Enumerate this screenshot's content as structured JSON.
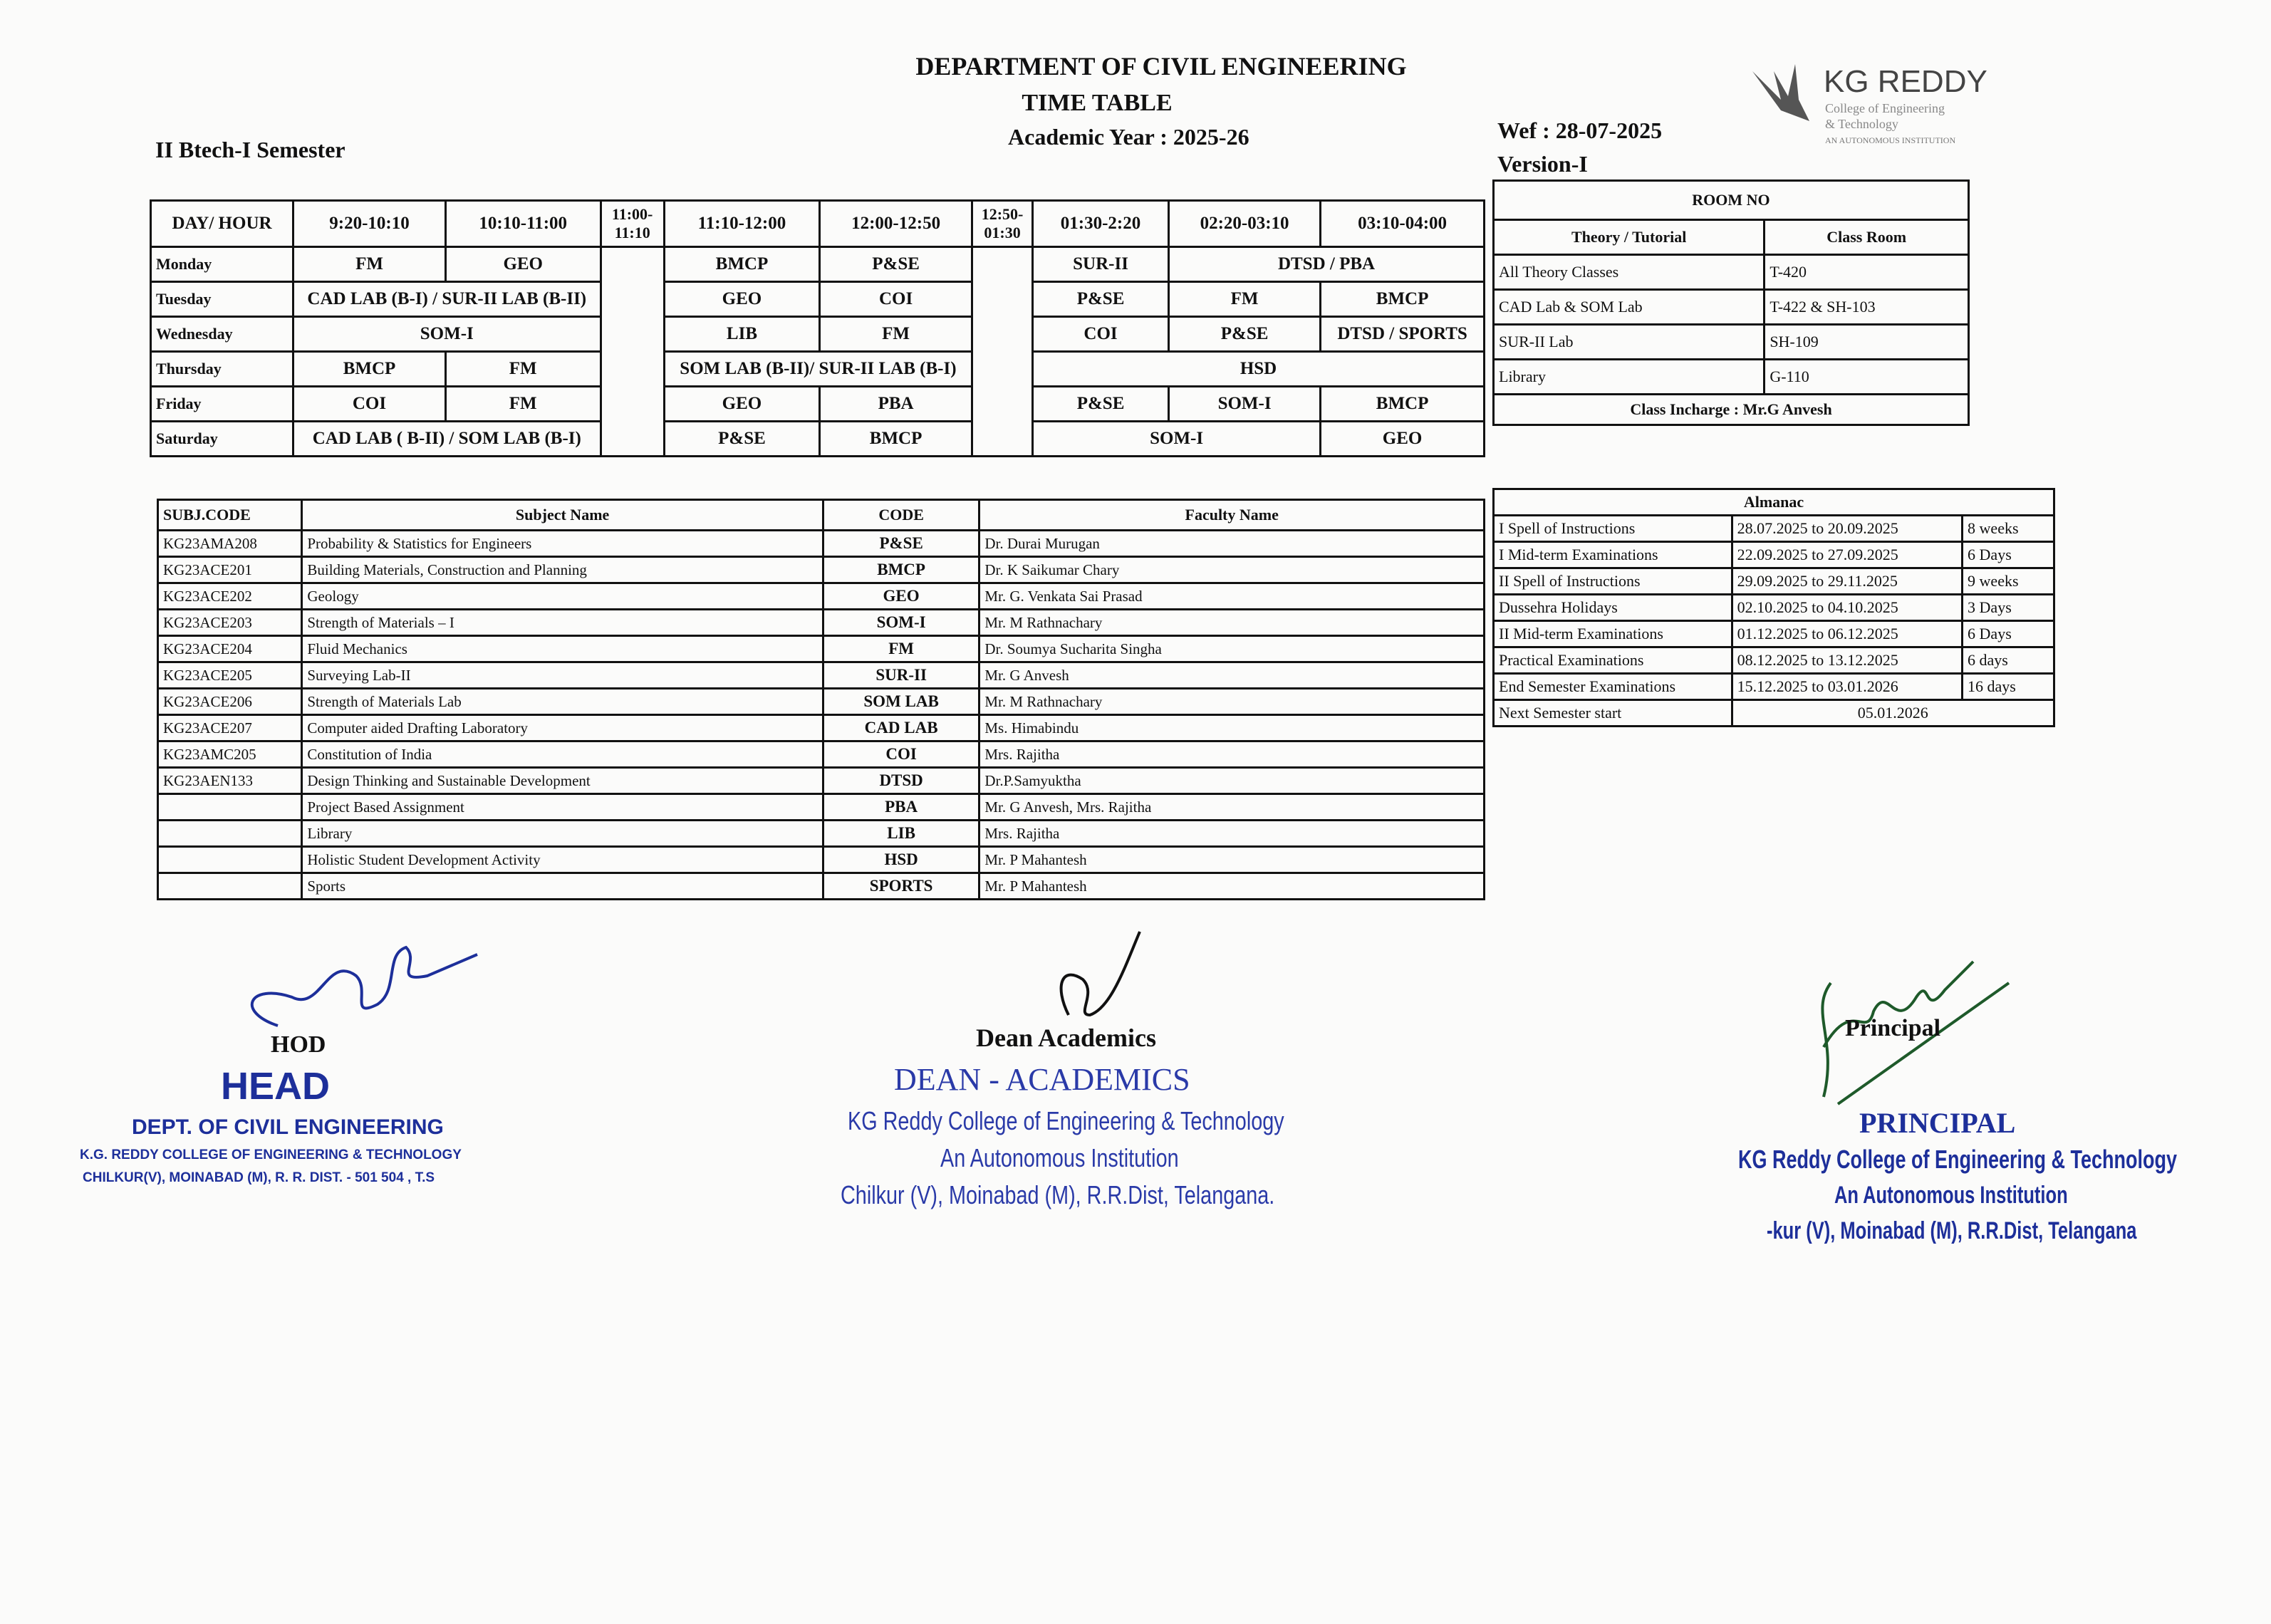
{
  "header": {
    "department": "DEPARTMENT OF CIVIL ENGINEERING",
    "doc_title": "TIME TABLE",
    "academic_year": "Academic Year :  2025-26",
    "semester": "II Btech-I Semester",
    "wef": "Wef : 28-07-2025",
    "version": "Version-I",
    "logo": {
      "name": "KG REDDY",
      "line1": "College of Engineering",
      "line2": "& Technology",
      "line3": "AN AUTONOMOUS INSTITUTION"
    }
  },
  "timetable": {
    "columns": [
      "DAY/ HOUR",
      "9:20-10:10",
      "10:10-11:00",
      "11:00-11:10",
      "11:10-12:00",
      "12:00-12:50",
      "12:50-01:30",
      "01:30-2:20",
      "02:20-03:10",
      "03:10-04:00"
    ],
    "rows": [
      {
        "day": "Monday",
        "cells": [
          {
            "t": "FM"
          },
          {
            "t": "GEO"
          },
          {
            "t": "BMCP"
          },
          {
            "t": "P&SE"
          },
          {
            "t": "SUR-II"
          },
          {
            "t": "DTSD / PBA",
            "s": 2
          }
        ]
      },
      {
        "day": "Tuesday",
        "cells": [
          {
            "t": "CAD LAB (B-I) / SUR-II LAB (B-II)",
            "s": 2
          },
          {
            "t": "GEO"
          },
          {
            "t": "COI"
          },
          {
            "t": "P&SE"
          },
          {
            "t": "FM"
          },
          {
            "t": "BMCP"
          }
        ]
      },
      {
        "day": "Wednesday",
        "cells": [
          {
            "t": "SOM-I",
            "s": 2
          },
          {
            "t": "LIB"
          },
          {
            "t": "FM"
          },
          {
            "t": "COI"
          },
          {
            "t": "P&SE"
          },
          {
            "t": "DTSD / SPORTS"
          }
        ]
      },
      {
        "day": "Thursday",
        "cells": [
          {
            "t": "BMCP"
          },
          {
            "t": "FM"
          },
          {
            "t": "SOM LAB (B-II)/ SUR-II LAB (B-I)",
            "s": 2
          },
          {
            "t": "HSD",
            "s": 3
          }
        ]
      },
      {
        "day": "Friday",
        "cells": [
          {
            "t": "COI"
          },
          {
            "t": "FM"
          },
          {
            "t": "GEO"
          },
          {
            "t": "PBA"
          },
          {
            "t": "P&SE"
          },
          {
            "t": "SOM-I"
          },
          {
            "t": "BMCP"
          }
        ]
      },
      {
        "day": "Saturday",
        "cells": [
          {
            "t": "CAD LAB ( B-II) / SOM LAB (B-I)",
            "s": 2
          },
          {
            "t": "P&SE"
          },
          {
            "t": "BMCP"
          },
          {
            "t": "SOM-I",
            "s": 2
          },
          {
            "t": "GEO"
          }
        ]
      }
    ]
  },
  "room": {
    "title": "ROOM NO",
    "headers": [
      "Theory / Tutorial",
      "Class Room"
    ],
    "rows": [
      [
        "All  Theory Classes",
        "T-420"
      ],
      [
        "CAD Lab  & SOM Lab",
        "T-422 & SH-103"
      ],
      [
        "SUR-II Lab",
        "SH-109"
      ],
      [
        "Library",
        "G-110"
      ]
    ],
    "incharge": "Class Incharge : Mr.G Anvesh"
  },
  "subjects": {
    "headers": [
      "SUBJ.CODE",
      "Subject Name",
      "CODE",
      "Faculty Name"
    ],
    "rows": [
      [
        "KG23AMA208",
        "Probability & Statistics for Engineers",
        "P&SE",
        "Dr. Durai Murugan"
      ],
      [
        "KG23ACE201",
        "Building Materials, Construction and Planning",
        "BMCP",
        "Dr. K Saikumar Chary"
      ],
      [
        "KG23ACE202",
        "Geology",
        "GEO",
        "Mr. G. Venkata Sai Prasad"
      ],
      [
        "KG23ACE203",
        "Strength of Materials – I",
        "SOM-I",
        "Mr. M Rathnachary"
      ],
      [
        "KG23ACE204",
        "Fluid Mechanics",
        "FM",
        "Dr. Soumya Sucharita Singha"
      ],
      [
        "KG23ACE205",
        "Surveying Lab-II",
        "SUR-II",
        "Mr. G Anvesh"
      ],
      [
        "KG23ACE206",
        "Strength of Materials Lab",
        "SOM LAB",
        "Mr. M Rathnachary"
      ],
      [
        "KG23ACE207",
        "Computer aided Drafting Laboratory",
        "CAD LAB",
        "Ms. Himabindu"
      ],
      [
        "KG23AMC205",
        "Constitution of India",
        "COI",
        "Mrs. Rajitha"
      ],
      [
        "KG23AEN133",
        "Design Thinking and Sustainable Development",
        "DTSD",
        "Dr.P.Samyuktha"
      ],
      [
        "",
        "Project Based Assignment",
        "PBA",
        "Mr. G Anvesh, Mrs. Rajitha"
      ],
      [
        "",
        "Library",
        "LIB",
        "Mrs. Rajitha"
      ],
      [
        "",
        "Holistic Student Development Activity",
        "HSD",
        "Mr. P Mahantesh"
      ],
      [
        "",
        "Sports",
        "SPORTS",
        "Mr. P Mahantesh"
      ]
    ]
  },
  "almanac": {
    "title": "Almanac",
    "rows": [
      [
        "I Spell of Instructions",
        "28.07.2025 to 20.09.2025",
        "8 weeks"
      ],
      [
        "I Mid-term Examinations",
        "22.09.2025 to 27.09.2025",
        "6 Days"
      ],
      [
        "II Spell of Instructions",
        "29.09.2025 to 29.11.2025",
        "9 weeks"
      ],
      [
        " Dussehra Holidays",
        "02.10.2025 to 04.10.2025",
        "3 Days"
      ],
      [
        "II Mid-term Examinations",
        "01.12.2025 to 06.12.2025",
        "6 Days"
      ],
      [
        "Practical Examinations",
        "08.12.2025 to 13.12.2025",
        "6 days"
      ],
      [
        "End Semester Examinations",
        "15.12.2025 to 03.01.2026",
        "16 days"
      ]
    ],
    "next_label": "Next Semester start",
    "next_value": "05.01.2026"
  },
  "signatures": {
    "hod": {
      "label": "HOD",
      "stamp1": "HEAD",
      "stamp2": "DEPT. OF CIVIL ENGINEERING",
      "stamp3": "K.G. REDDY COLLEGE OF ENGINEERING & TECHNOLOGY",
      "stamp4": "CHILKUR(V), MOINABAD (M), R. R. DIST. - 501 504 , T.S"
    },
    "dean": {
      "label": "Dean Academics",
      "stamp1": "DEAN - ACADEMICS",
      "stamp2": "KG Reddy College of Engineering & Technology",
      "stamp3": "An Autonomous Institution",
      "stamp4": "Chilkur (V), Moinabad (M), R.R.Dist, Telangana."
    },
    "principal": {
      "label": "Principal",
      "stamp1": "PRINCIPAL",
      "stamp2": "KG Reddy College of Engineering & Technology",
      "stamp3": "An Autonomous Institution",
      "stamp4": "-kur (V), Moinabad (M), R.R.Dist, Telangana"
    }
  },
  "colors": {
    "ink": "#111111",
    "stamp_blue": "#1d2f9a",
    "signature_green": "#1e5a2a"
  }
}
